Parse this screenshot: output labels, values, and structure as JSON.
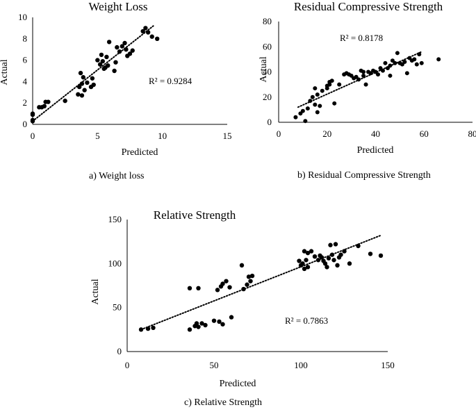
{
  "chart_data": [
    {
      "type": "scatter",
      "title": "Weight Loss",
      "xlabel": "Predicted",
      "ylabel": "Actual",
      "xlim": [
        0,
        15
      ],
      "ylim": [
        0,
        10
      ],
      "xticks": [
        "0",
        "5",
        "10",
        "15"
      ],
      "yticks": [
        "0",
        "2",
        "4",
        "6",
        "8",
        "10"
      ],
      "trendline": {
        "style": "dotted",
        "x": [
          0,
          9.3
        ],
        "y": [
          0.3,
          9.2
        ]
      },
      "r2": "R² = 0.9284",
      "caption": "a)   Weight loss",
      "grid": false,
      "points": [
        [
          0,
          0.3
        ],
        [
          0,
          0.4
        ],
        [
          0,
          0.9
        ],
        [
          0,
          1.0
        ],
        [
          0.5,
          1.6
        ],
        [
          0.7,
          1.6
        ],
        [
          0.9,
          1.7
        ],
        [
          1.0,
          2.1
        ],
        [
          1.2,
          2.1
        ],
        [
          2.5,
          2.2
        ],
        [
          3.5,
          2.8
        ],
        [
          3.8,
          2.7
        ],
        [
          3.6,
          3.5
        ],
        [
          3.8,
          3.8
        ],
        [
          4.0,
          3.2
        ],
        [
          3.9,
          4.4
        ],
        [
          3.7,
          4.8
        ],
        [
          4.2,
          3.9
        ],
        [
          4.5,
          3.5
        ],
        [
          4.7,
          3.7
        ],
        [
          4.6,
          4.3
        ],
        [
          5.0,
          6.0
        ],
        [
          5.3,
          6.5
        ],
        [
          5.4,
          5.9
        ],
        [
          5.2,
          5.6
        ],
        [
          5.6,
          5.3
        ],
        [
          5.8,
          5.5
        ],
        [
          5.5,
          5.2
        ],
        [
          5.7,
          6.3
        ],
        [
          5.9,
          7.7
        ],
        [
          6.3,
          5.0
        ],
        [
          6.4,
          5.8
        ],
        [
          6.5,
          7.2
        ],
        [
          6.7,
          6.8
        ],
        [
          6.9,
          7.3
        ],
        [
          7.1,
          7.6
        ],
        [
          7.2,
          7.0
        ],
        [
          7.3,
          6.4
        ],
        [
          7.5,
          6.6
        ],
        [
          7.7,
          6.9
        ],
        [
          8.5,
          8.7
        ],
        [
          8.7,
          9.0
        ],
        [
          8.9,
          8.6
        ],
        [
          9.2,
          8.2
        ],
        [
          9.6,
          8.0
        ]
      ]
    },
    {
      "type": "scatter",
      "title": "Residual Compressive Strength",
      "xlabel": "Predicted",
      "ylabel": "Actual",
      "xlim": [
        0,
        80
      ],
      "ylim": [
        0,
        80
      ],
      "xticks": [
        "0",
        "20",
        "40",
        "60",
        "80"
      ],
      "yticks": [
        "0",
        "20",
        "40",
        "60",
        "80"
      ],
      "trendline": {
        "style": "dotted",
        "x": [
          8,
          59
        ],
        "y": [
          12,
          56
        ]
      },
      "r2": "R² = 0.8178",
      "caption": "b)   Residual Compressive Strength",
      "grid": false,
      "points": [
        [
          7,
          4
        ],
        [
          9,
          7
        ],
        [
          10,
          9
        ],
        [
          11,
          1
        ],
        [
          12,
          11
        ],
        [
          13,
          17
        ],
        [
          14,
          20
        ],
        [
          15,
          27
        ],
        [
          15,
          14
        ],
        [
          16,
          8
        ],
        [
          16,
          22
        ],
        [
          17,
          13
        ],
        [
          18,
          25
        ],
        [
          20,
          29
        ],
        [
          20,
          27
        ],
        [
          21,
          30
        ],
        [
          21,
          32
        ],
        [
          22,
          33
        ],
        [
          23,
          15
        ],
        [
          25,
          30
        ],
        [
          27,
          38
        ],
        [
          28,
          39
        ],
        [
          29,
          38
        ],
        [
          30,
          37
        ],
        [
          31,
          35
        ],
        [
          32,
          36
        ],
        [
          33,
          34
        ],
        [
          34,
          41
        ],
        [
          35,
          37
        ],
        [
          35,
          40
        ],
        [
          36,
          30
        ],
        [
          37,
          40
        ],
        [
          38,
          39
        ],
        [
          39,
          41
        ],
        [
          40,
          40
        ],
        [
          41,
          38
        ],
        [
          42,
          43
        ],
        [
          43,
          41
        ],
        [
          44,
          47
        ],
        [
          45,
          43
        ],
        [
          46,
          45
        ],
        [
          46,
          37
        ],
        [
          47,
          49
        ],
        [
          48,
          47
        ],
        [
          49,
          55
        ],
        [
          50,
          47
        ],
        [
          51,
          46
        ],
        [
          52,
          48
        ],
        [
          53,
          39
        ],
        [
          54,
          51
        ],
        [
          55,
          49
        ],
        [
          56,
          50
        ],
        [
          57,
          46
        ],
        [
          58,
          54
        ],
        [
          59,
          47
        ],
        [
          66,
          50
        ]
      ]
    },
    {
      "type": "scatter",
      "title": "Relative Strength",
      "xlabel": "Predicted",
      "ylabel": "Actual",
      "xlim": [
        0,
        150
      ],
      "ylim": [
        0,
        150
      ],
      "xticks": [
        "0",
        "50",
        "100",
        "150"
      ],
      "yticks": [
        "0",
        "50",
        "100",
        "150"
      ],
      "trendline": {
        "style": "dotted",
        "x": [
          8,
          146
        ],
        "y": [
          25,
          132
        ]
      },
      "r2": "R² = 0.7863",
      "caption": "c) Relative Strength",
      "grid": false,
      "points": [
        [
          8,
          25
        ],
        [
          12,
          26
        ],
        [
          15,
          27
        ],
        [
          36,
          25
        ],
        [
          39,
          29
        ],
        [
          40,
          32
        ],
        [
          41,
          28
        ],
        [
          43,
          32
        ],
        [
          45,
          30
        ],
        [
          50,
          35
        ],
        [
          53,
          34
        ],
        [
          55,
          31
        ],
        [
          60,
          39
        ],
        [
          36,
          72
        ],
        [
          41,
          72
        ],
        [
          52,
          70
        ],
        [
          54,
          74
        ],
        [
          55,
          77
        ],
        [
          57,
          80
        ],
        [
          59,
          73
        ],
        [
          66,
          98
        ],
        [
          67,
          71
        ],
        [
          69,
          76
        ],
        [
          70,
          85
        ],
        [
          71,
          80
        ],
        [
          72,
          86
        ],
        [
          99,
          103
        ],
        [
          100,
          98
        ],
        [
          101,
          100
        ],
        [
          102,
          94
        ],
        [
          102,
          114
        ],
        [
          103,
          104
        ],
        [
          104,
          112
        ],
        [
          104,
          96
        ],
        [
          106,
          114
        ],
        [
          108,
          108
        ],
        [
          110,
          104
        ],
        [
          111,
          109
        ],
        [
          112,
          107
        ],
        [
          113,
          103
        ],
        [
          114,
          100
        ],
        [
          115,
          96
        ],
        [
          116,
          106
        ],
        [
          117,
          121
        ],
        [
          118,
          110
        ],
        [
          119,
          104
        ],
        [
          120,
          122
        ],
        [
          121,
          98
        ],
        [
          122,
          107
        ],
        [
          123,
          110
        ],
        [
          125,
          114
        ],
        [
          128,
          100
        ],
        [
          133,
          120
        ],
        [
          140,
          111
        ],
        [
          146,
          109
        ]
      ]
    }
  ]
}
